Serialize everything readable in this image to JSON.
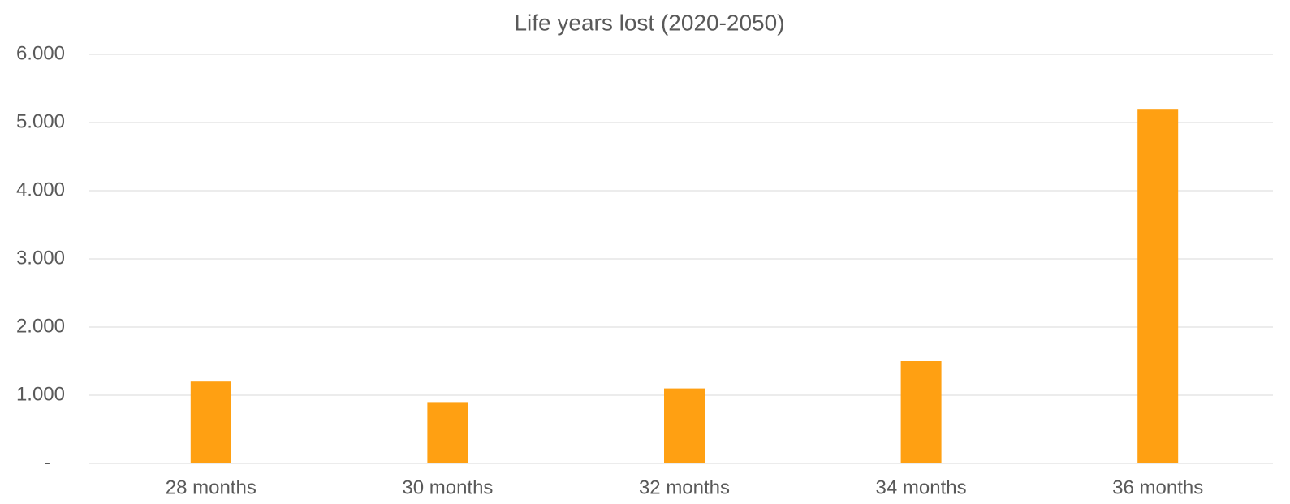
{
  "chart_data": {
    "type": "bar",
    "title": "Life years lost (2020-2050)",
    "categories": [
      "28 months",
      "30 months",
      "32 months",
      "34 months",
      "36 months"
    ],
    "values": [
      1200,
      900,
      1100,
      1500,
      5200
    ],
    "color": "#ffa012",
    "ylim": [
      0,
      6000
    ],
    "yticks": [
      {
        "value": 0,
        "label": "-"
      },
      {
        "value": 1000,
        "label": "1.000"
      },
      {
        "value": 2000,
        "label": "2.000"
      },
      {
        "value": 3000,
        "label": "3.000"
      },
      {
        "value": 4000,
        "label": "4.000"
      },
      {
        "value": 5000,
        "label": "5.000"
      },
      {
        "value": 6000,
        "label": "6.000"
      }
    ],
    "grid": true
  }
}
